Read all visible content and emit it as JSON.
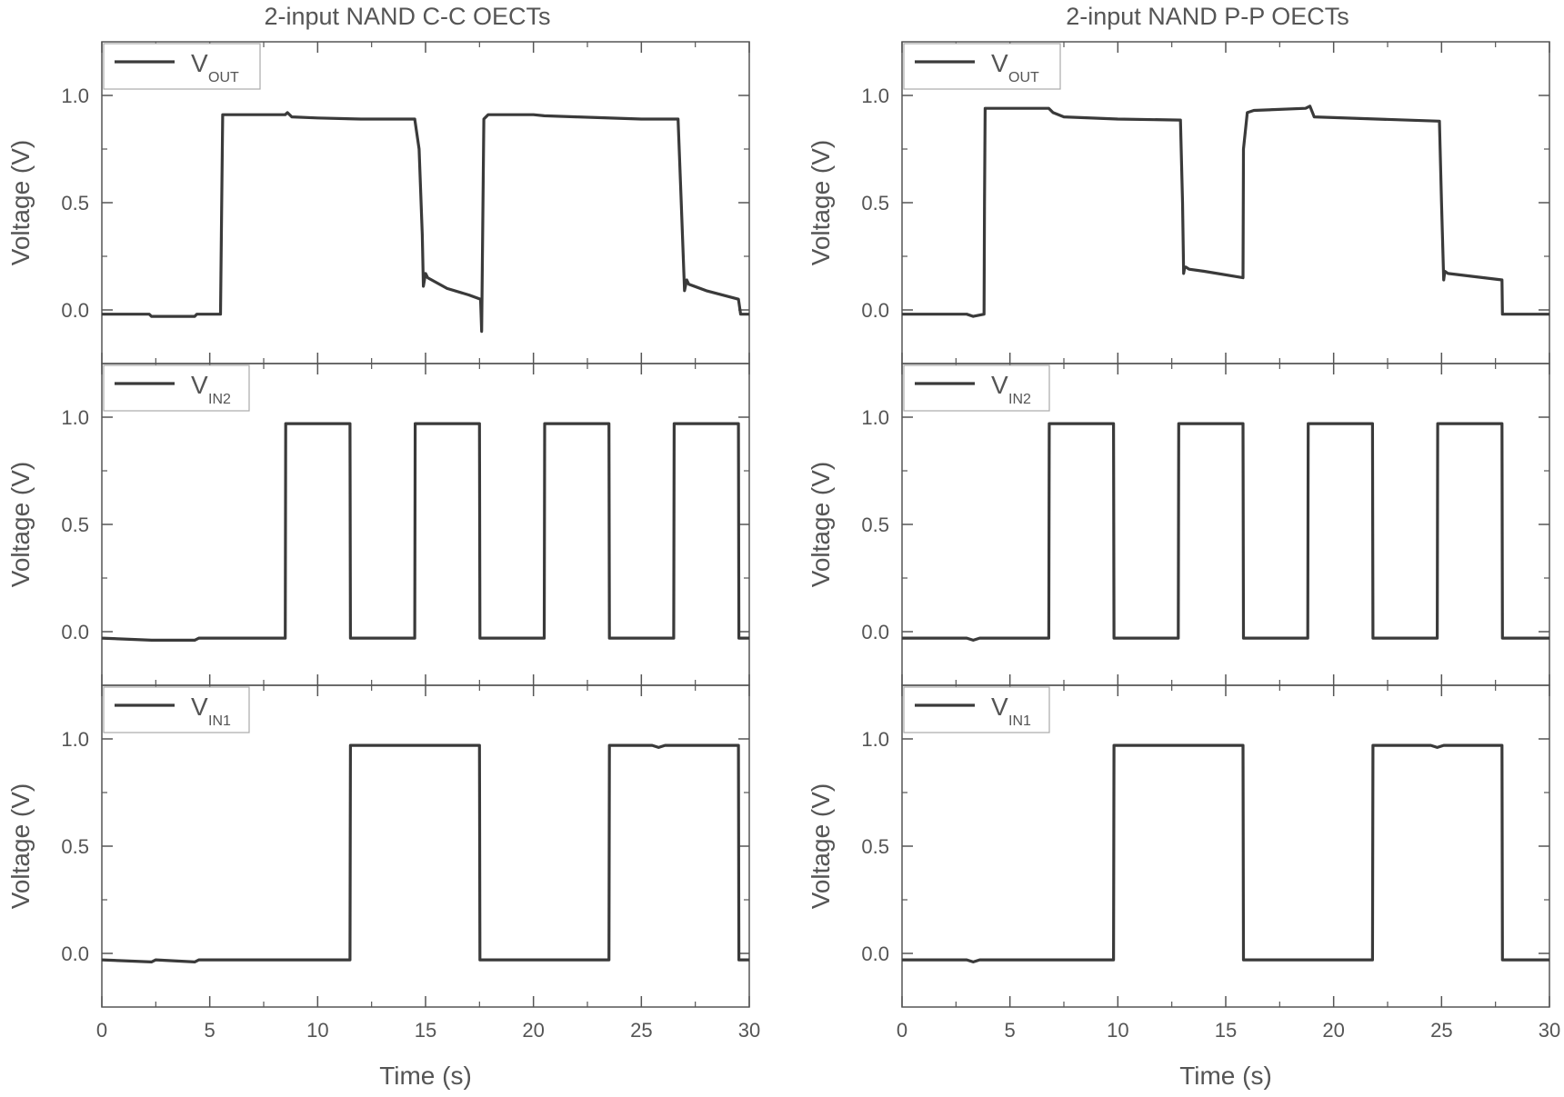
{
  "colors": {
    "trace": "#3a3a3a",
    "axis": "#555555",
    "text": "#555555"
  },
  "chart_data": [
    {
      "type": "line",
      "title": "2-input NAND C-C OECTs",
      "xlabel": "Time (s)",
      "xlim": [
        0,
        30
      ],
      "xticks": [
        "0",
        "5",
        "10",
        "15",
        "20",
        "25",
        "30"
      ],
      "grid": false,
      "legend_position": "top-left",
      "panels": [
        {
          "ylabel": "Voltage (V)",
          "ylim": [
            -0.25,
            1.25
          ],
          "yticks": [
            "0.0",
            "0.5",
            "1.0"
          ],
          "legend": {
            "main": "V",
            "sub": "OUT"
          },
          "series": [
            {
              "x": [
                0,
                2.2,
                2.3,
                4.3,
                4.4,
                5.5,
                5.55,
                5.6,
                8.5,
                8.6,
                8.8,
                10,
                12,
                14.5,
                14.7,
                14.85,
                14.9,
                15.0,
                15.1,
                16,
                17,
                17.55,
                17.6,
                17.7,
                17.9,
                20,
                20.5,
                22,
                25,
                26.7,
                26.85,
                27.0,
                27.1,
                27.2,
                28,
                29.5,
                29.6,
                30
              ],
              "y": [
                -0.02,
                -0.02,
                -0.03,
                -0.03,
                -0.02,
                -0.02,
                0.45,
                0.91,
                0.91,
                0.92,
                0.9,
                0.895,
                0.89,
                0.89,
                0.75,
                0.35,
                0.11,
                0.17,
                0.15,
                0.1,
                0.07,
                0.05,
                -0.1,
                0.89,
                0.91,
                0.91,
                0.905,
                0.9,
                0.89,
                0.89,
                0.5,
                0.09,
                0.14,
                0.12,
                0.09,
                0.05,
                -0.02,
                -0.02
              ]
            }
          ]
        },
        {
          "ylabel": "Voltage (V)",
          "ylim": [
            -0.25,
            1.25
          ],
          "yticks": [
            "0.0",
            "0.5",
            "1.0"
          ],
          "legend": {
            "main": "V",
            "sub": "IN2"
          },
          "series": [
            {
              "x": [
                0,
                2.3,
                4.3,
                4.5,
                8.5,
                8.52,
                11.5,
                11.52,
                14.5,
                14.52,
                17.5,
                17.52,
                20.5,
                20.52,
                23.5,
                23.52,
                26.5,
                26.52,
                29.5,
                29.52,
                30
              ],
              "y": [
                -0.03,
                -0.04,
                -0.04,
                -0.03,
                -0.03,
                0.97,
                0.97,
                -0.03,
                -0.03,
                0.97,
                0.97,
                -0.03,
                -0.03,
                0.97,
                0.97,
                -0.03,
                -0.03,
                0.97,
                0.97,
                -0.03,
                -0.03
              ]
            }
          ]
        },
        {
          "ylabel": "Voltage (V)",
          "ylim": [
            -0.25,
            1.25
          ],
          "yticks": [
            "0.0",
            "0.5",
            "1.0"
          ],
          "legend": {
            "main": "V",
            "sub": "IN1"
          },
          "series": [
            {
              "x": [
                0,
                2.3,
                2.5,
                4.3,
                4.5,
                11.5,
                11.52,
                17.5,
                17.52,
                23.5,
                23.52,
                25.5,
                25.8,
                26.1,
                29.5,
                29.52,
                30
              ],
              "y": [
                -0.03,
                -0.04,
                -0.03,
                -0.04,
                -0.03,
                -0.03,
                0.97,
                0.97,
                -0.03,
                -0.03,
                0.97,
                0.97,
                0.96,
                0.97,
                0.97,
                -0.03,
                -0.03
              ]
            }
          ]
        }
      ]
    },
    {
      "type": "line",
      "title": "2-input NAND P-P OECTs",
      "xlabel": "Time (s)",
      "xlim": [
        0,
        30
      ],
      "xticks": [
        "0",
        "5",
        "10",
        "15",
        "20",
        "25",
        "30"
      ],
      "grid": false,
      "legend_position": "top-left",
      "panels": [
        {
          "ylabel": "Voltage (V)",
          "ylim": [
            -0.25,
            1.25
          ],
          "yticks": [
            "0.0",
            "0.5",
            "1.0"
          ],
          "legend": {
            "main": "V",
            "sub": "OUT"
          },
          "series": [
            {
              "x": [
                0,
                3.0,
                3.3,
                3.8,
                3.82,
                3.85,
                6.8,
                7.0,
                7.5,
                10,
                12.9,
                13.0,
                13.05,
                13.1,
                13.15,
                13.3,
                14,
                15.8,
                15.82,
                16.0,
                16.3,
                18.7,
                18.9,
                19.1,
                22,
                24.9,
                25.0,
                25.1,
                25.15,
                25.3,
                27.8,
                27.82,
                30
              ],
              "y": [
                -0.02,
                -0.02,
                -0.03,
                -0.02,
                0.5,
                0.94,
                0.94,
                0.92,
                0.9,
                0.89,
                0.885,
                0.5,
                0.17,
                0.2,
                0.2,
                0.19,
                0.18,
                0.15,
                0.75,
                0.92,
                0.93,
                0.94,
                0.95,
                0.9,
                0.89,
                0.88,
                0.5,
                0.14,
                0.18,
                0.17,
                0.14,
                -0.02,
                -0.02
              ]
            }
          ]
        },
        {
          "ylabel": "Voltage (V)",
          "ylim": [
            -0.25,
            1.25
          ],
          "yticks": [
            "0.0",
            "0.5",
            "1.0"
          ],
          "legend": {
            "main": "V",
            "sub": "IN2"
          },
          "series": [
            {
              "x": [
                0,
                3.0,
                3.3,
                3.6,
                6.8,
                6.82,
                9.8,
                9.82,
                12.8,
                12.82,
                15.8,
                15.82,
                18.8,
                18.82,
                21.8,
                21.82,
                24.8,
                24.82,
                27.8,
                27.82,
                30
              ],
              "y": [
                -0.03,
                -0.03,
                -0.04,
                -0.03,
                -0.03,
                0.97,
                0.97,
                -0.03,
                -0.03,
                0.97,
                0.97,
                -0.03,
                -0.03,
                0.97,
                0.97,
                -0.03,
                -0.03,
                0.97,
                0.97,
                -0.03,
                -0.03
              ]
            }
          ]
        },
        {
          "ylabel": "Voltage (V)",
          "ylim": [
            -0.25,
            1.25
          ],
          "yticks": [
            "0.0",
            "0.5",
            "1.0"
          ],
          "legend": {
            "main": "V",
            "sub": "IN1"
          },
          "series": [
            {
              "x": [
                0,
                3.0,
                3.3,
                3.6,
                9.8,
                9.82,
                15.8,
                15.82,
                21.8,
                21.82,
                24.5,
                24.8,
                25.1,
                27.8,
                27.82,
                30
              ],
              "y": [
                -0.03,
                -0.03,
                -0.04,
                -0.03,
                -0.03,
                0.97,
                0.97,
                -0.03,
                -0.03,
                0.97,
                0.97,
                0.96,
                0.97,
                0.97,
                -0.03,
                -0.03
              ]
            }
          ]
        }
      ]
    }
  ]
}
